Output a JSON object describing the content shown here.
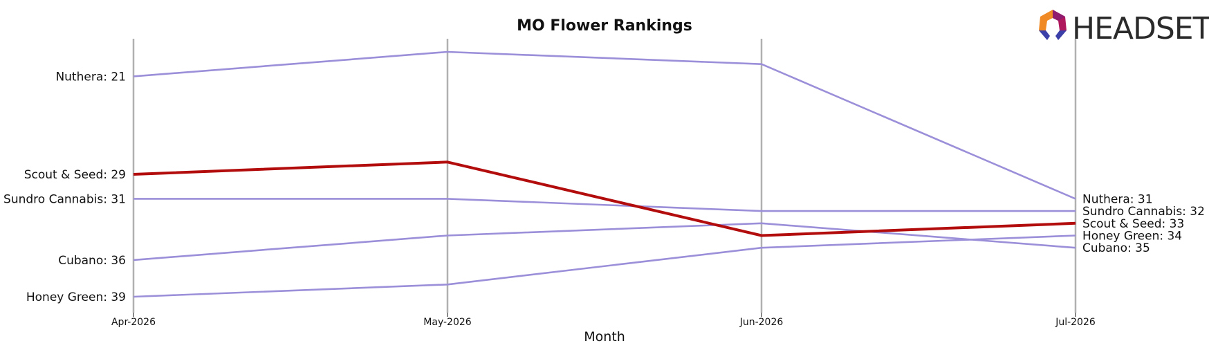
{
  "chart_data": {
    "type": "line",
    "title": "MO Flower Rankings",
    "xlabel": "Month",
    "ylabel": "",
    "x": [
      "Apr-2026",
      "May-2026",
      "Jun-2026",
      "Jul-2026"
    ],
    "y_inverted": true,
    "ylim": [
      41,
      19
    ],
    "grid": "vertical lines at each month",
    "legend": "direct labels at left and right ends",
    "highlight_series": "Scout & Seed",
    "colors": {
      "default_series": "#9b8fd9",
      "highlight_series": "#b30c0c",
      "month_lines": "#b0b0b0"
    },
    "series": [
      {
        "name": "Nuthera",
        "values": [
          21,
          19,
          20,
          31
        ]
      },
      {
        "name": "Scout & Seed",
        "values": [
          29,
          28,
          34,
          33
        ]
      },
      {
        "name": "Sundro Cannabis",
        "values": [
          31,
          31,
          32,
          32
        ]
      },
      {
        "name": "Cubano",
        "values": [
          36,
          34,
          33,
          35
        ]
      },
      {
        "name": "Honey Green",
        "values": [
          39,
          38,
          35,
          34
        ]
      }
    ],
    "left_labels": [
      {
        "series": "Nuthera",
        "text": "Nuthera: 21"
      },
      {
        "series": "Scout & Seed",
        "text": "Scout & Seed: 29"
      },
      {
        "series": "Sundro Cannabis",
        "text": "Sundro Cannabis: 31"
      },
      {
        "series": "Cubano",
        "text": "Cubano: 36"
      },
      {
        "series": "Honey Green",
        "text": "Honey Green: 39"
      }
    ],
    "right_labels": [
      {
        "series": "Nuthera",
        "text": "Nuthera: 31"
      },
      {
        "series": "Sundro Cannabis",
        "text": "Sundro Cannabis: 32"
      },
      {
        "series": "Scout & Seed",
        "text": "Scout & Seed: 33"
      },
      {
        "series": "Honey Green",
        "text": "Honey Green: 34"
      },
      {
        "series": "Cubano",
        "text": "Cubano: 35"
      }
    ]
  },
  "logo": {
    "text": "HEADSET",
    "icon": "headset-hexagon-logo-icon"
  }
}
